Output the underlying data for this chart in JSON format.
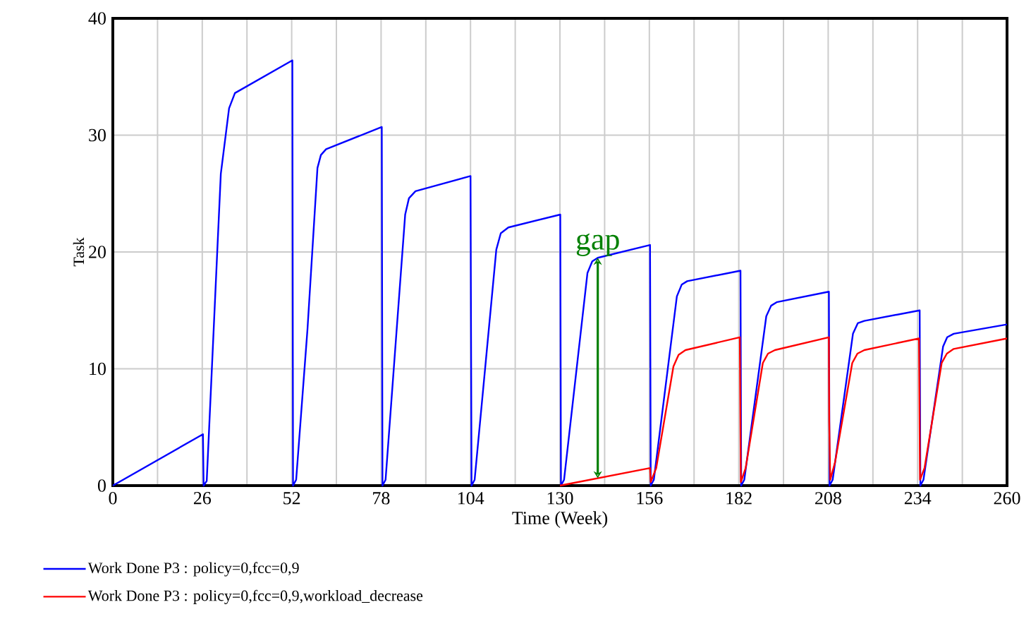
{
  "chart_data": {
    "type": "line",
    "xlabel": "Time (Week)",
    "ylabel": "Task",
    "xlim": [
      0,
      260
    ],
    "ylim": [
      0,
      40
    ],
    "xticks": [
      0,
      {
        "value": 13,
        "label": null
      },
      26,
      {
        "value": 39,
        "label": null
      },
      52,
      {
        "value": 65,
        "label": null
      },
      78,
      {
        "value": 91,
        "label": null
      },
      104,
      {
        "value": 117,
        "label": null
      },
      130,
      {
        "value": 143,
        "label": null
      },
      156,
      {
        "value": 169,
        "label": null
      },
      182,
      {
        "value": 195,
        "label": null
      },
      208,
      {
        "value": 221,
        "label": null
      },
      234,
      {
        "value": 247,
        "label": null
      },
      260
    ],
    "yticks": [
      0,
      10,
      20,
      30,
      40
    ],
    "grid": true,
    "legend": "bottom",
    "marker": "none",
    "line_style": "solid",
    "series": [
      {
        "name": "Work Done P3 : policy=0,fcc=0,9",
        "color": "#0000ff",
        "x": [
          0,
          26.2,
          26.4,
          27.3,
          31.4,
          33.8,
          35.5,
          52.2,
          52.4,
          53.3,
          56.6,
          59.5,
          60.5,
          62,
          78.2,
          78.4,
          79.3,
          85,
          86.1,
          88,
          104,
          104.3,
          105.2,
          111.5,
          112.8,
          115,
          130.1,
          130.3,
          131.2,
          138,
          139.4,
          141,
          156.2,
          156.4,
          157.3,
          164,
          165.4,
          167,
          182.5,
          182.7,
          183.6,
          190,
          191.4,
          193,
          208.2,
          208.4,
          209.3,
          215.2,
          216.6,
          218.5,
          234.6,
          234.8,
          235.7,
          241.4,
          242.6,
          244.5,
          260
        ],
        "values": [
          0,
          4.4,
          0,
          0.4,
          26.7,
          32.3,
          33.6,
          36.4,
          0,
          0.5,
          13.4,
          27.2,
          28.3,
          28.8,
          30.7,
          0,
          0.5,
          23.2,
          24.6,
          25.2,
          26.5,
          0,
          0.5,
          20.2,
          21.6,
          22.1,
          23.2,
          0,
          0.5,
          18.2,
          19.2,
          19.5,
          20.6,
          0,
          0.5,
          16.2,
          17.2,
          17.5,
          18.4,
          0,
          0.5,
          14.5,
          15.4,
          15.7,
          16.6,
          0,
          0.5,
          13,
          13.9,
          14.1,
          15.0,
          0,
          0.5,
          11.9,
          12.7,
          13,
          13.8
        ]
      },
      {
        "name": "Work Done P3 : policy=0,fcc=0,9,workload_decrease",
        "color": "#ff0000",
        "x": [
          130,
          156.2,
          156.4,
          158,
          163,
          164.5,
          166.5,
          182.3,
          182.6,
          184,
          189,
          190.5,
          192.5,
          208.2,
          208.3,
          208.6,
          210,
          215,
          216.5,
          218.5,
          234.4,
          234.7,
          236,
          241,
          242.5,
          244.5,
          260
        ],
        "values": [
          0,
          1.5,
          0.3,
          1.5,
          10.2,
          11.2,
          11.6,
          12.7,
          0.3,
          1.5,
          10.5,
          11.3,
          11.6,
          12.7,
          5.5,
          0.5,
          2,
          10.5,
          11.3,
          11.6,
          12.6,
          0.5,
          1.5,
          10.5,
          11.3,
          11.7,
          12.6
        ]
      }
    ],
    "annotations": [
      {
        "text": "gap",
        "x": 141,
        "y": 19.5
      }
    ]
  }
}
